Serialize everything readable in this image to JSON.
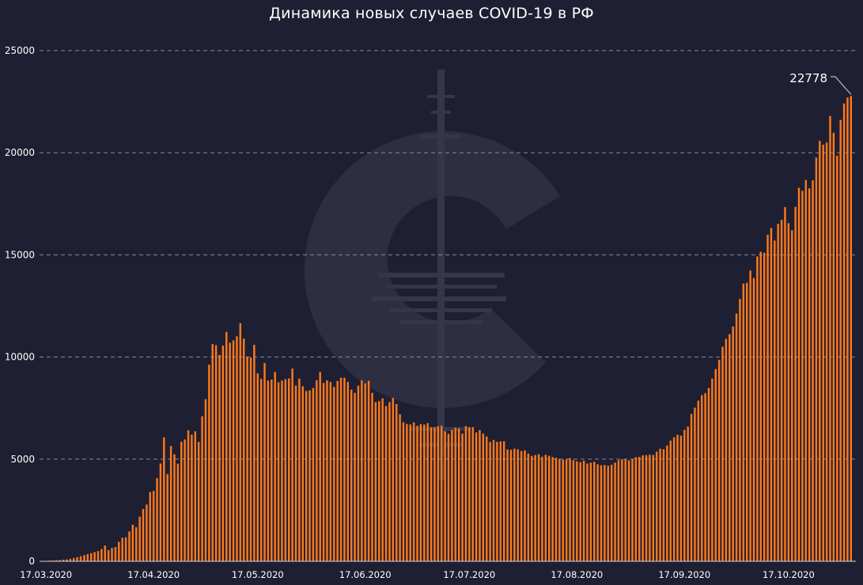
{
  "chart_data": {
    "type": "bar",
    "title": "Динамика новых случаев COVID-19 в РФ",
    "xlabel": "",
    "ylabel": "",
    "ylim": [
      0,
      25000
    ],
    "yticks": [
      0,
      5000,
      10000,
      15000,
      20000,
      25000
    ],
    "xtick_labels": [
      "17.03.2020",
      "17.04.2020",
      "17.05.2020",
      "17.06.2020",
      "17.07.2020",
      "17.08.2020",
      "17.09.2020",
      "17.10.2020"
    ],
    "grid": true,
    "bar_color": "#ff7a1a",
    "background_color": "#1f1f33",
    "annotation": {
      "text": "22778",
      "value": 22778
    },
    "x_start": "17.03.2020",
    "x_end": "06.11.2020",
    "values": [
      20,
      30,
      40,
      50,
      60,
      80,
      90,
      120,
      160,
      200,
      250,
      300,
      350,
      400,
      450,
      500,
      601,
      771,
      550,
      650,
      700,
      950,
      1150,
      1175,
      1459,
      1786,
      1667,
      2186,
      2558,
      2774,
      3388,
      3448,
      4070,
      4785,
      6060,
      4268,
      5642,
      5236,
      4774,
      5849,
      5966,
      6411,
      6198,
      6361,
      5841,
      7099,
      7933,
      9623,
      10633,
      10581,
      10102,
      10559,
      11231,
      10699,
      10817,
      11012,
      11656,
      10899,
      10028,
      9974,
      10598,
      9200,
      8926,
      9709,
      8849,
      8894,
      9263,
      8764,
      8849,
      8915,
      8952,
      9434,
      8599,
      8946,
      8572,
      8338,
      8371,
      8485,
      8863,
      9268,
      8726,
      8855,
      8779,
      8536,
      8831,
      8985,
      8987,
      8779,
      8404,
      8246,
      8595,
      8858,
      8706,
      8835,
      8248,
      7790,
      7843,
      7972,
      7600,
      7790,
      8000,
      7700,
      7200,
      6800,
      6718,
      6700,
      6800,
      6632,
      6719,
      6693,
      6760,
      6556,
      6562,
      6611,
      6635,
      6368,
      6234,
      6428,
      6537,
      6509,
      6248,
      6615,
      6562,
      6566,
      6306,
      6422,
      6248,
      6109,
      5842,
      5940,
      5848,
      5862,
      5871,
      5475,
      5462,
      5509,
      5482,
      5395,
      5427,
      5267,
      5159,
      5204,
      5241,
      5118,
      5212,
      5159,
      5102,
      5065,
      5010,
      4969,
      5000,
      5048,
      4945,
      4892,
      4852,
      4921,
      4785,
      4828,
      4870,
      4748,
      4700,
      4711,
      4676,
      4729,
      4829,
      4952,
      4993,
      4980,
      4941,
      4995,
      5099,
      5110,
      5185,
      5195,
      5218,
      5205,
      5363,
      5509,
      5488,
      5670,
      5905,
      6065,
      6196,
      6148,
      6431,
      6595,
      7212,
      7523,
      7867,
      8135,
      8232,
      8481,
      8945,
      9412,
      9859,
      10499,
      10888,
      11115,
      11493,
      12126,
      12846,
      13592,
      13634,
      14231,
      13868,
      14922,
      15150,
      15099,
      15982,
      16319,
      15700,
      16521,
      16710,
      17340,
      16550,
      16202,
      17347,
      18283,
      18140,
      18665,
      18257,
      18648,
      19768,
      20582,
      20396,
      20498,
      21798,
      20977,
      19851,
      21608,
      22410,
      22702,
      22778
    ]
  }
}
